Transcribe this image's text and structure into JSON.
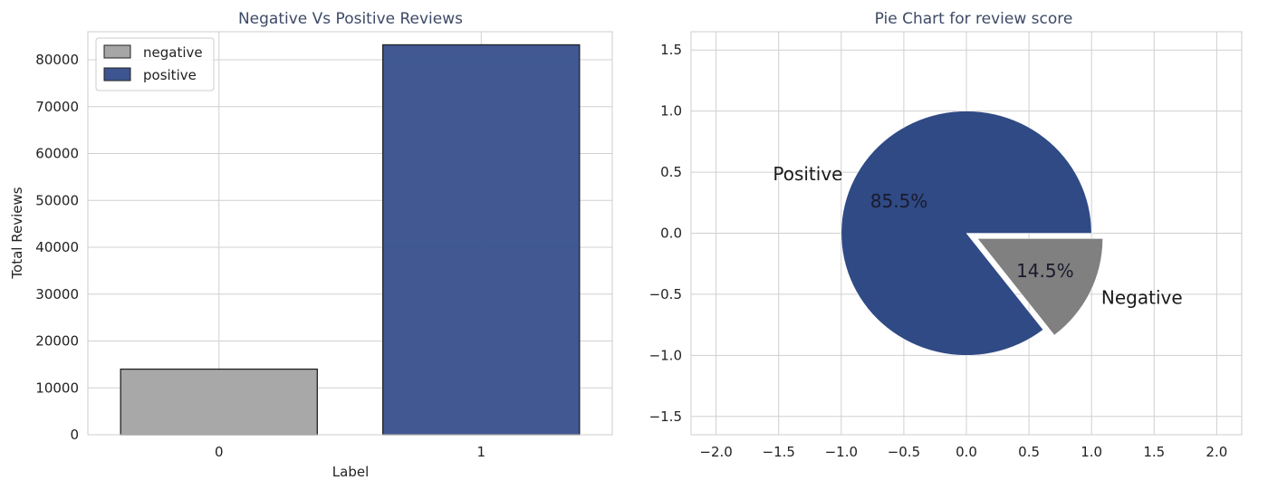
{
  "chart_data": [
    {
      "type": "bar",
      "title": "Negative Vs Positive Reviews",
      "xlabel": "Label",
      "ylabel": "Total Reviews",
      "categories": [
        "0",
        "1"
      ],
      "values": [
        14000,
        83200
      ],
      "ylim": [
        0,
        86000
      ],
      "yticks": [
        0,
        10000,
        20000,
        30000,
        40000,
        50000,
        60000,
        70000,
        80000
      ],
      "grid": true,
      "legend": {
        "placement": "top-left",
        "entries": [
          {
            "label": "negative",
            "color": "#a6a6a6"
          },
          {
            "label": "positive",
            "color": "#3d5590"
          }
        ]
      },
      "colors": [
        "#a6a6a6",
        "#3d5590"
      ]
    },
    {
      "type": "pie",
      "title": "Pie Chart for review score",
      "labels": [
        "Positive",
        "Negative"
      ],
      "values": [
        85.5,
        14.5
      ],
      "value_labels": [
        "85.5%",
        "14.5%"
      ],
      "colors": [
        "#2f4a85",
        "#808080"
      ],
      "explode": [
        0,
        0.1
      ],
      "xlim": [
        -2.2,
        2.2
      ],
      "ylim": [
        -1.65,
        1.65
      ],
      "xticks": [
        -2.0,
        -1.5,
        -1.0,
        -0.5,
        0.0,
        0.5,
        1.0,
        1.5,
        2.0
      ],
      "yticks": [
        1.5,
        1.0,
        0.5,
        0.0,
        -0.5,
        -1.0,
        -1.5
      ],
      "xtick_labels": [
        "−2.0",
        "−1.5",
        "−1.0",
        "−0.5",
        "0.0",
        "0.5",
        "1.0",
        "1.5",
        "2.0"
      ],
      "ytick_labels": [
        "1.5",
        "1.0",
        "0.5",
        "0.0",
        "−0.5",
        "−1.0",
        "−1.5"
      ],
      "grid": true
    }
  ]
}
